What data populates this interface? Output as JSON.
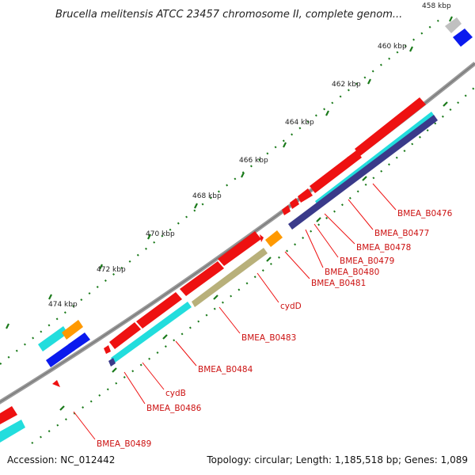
{
  "title": "Brucella melitensis ATCC 23457 chromosome II, complete genom...",
  "ticks": [
    "458 kbp",
    "460 kbp",
    "462 kbp",
    "464 kbp",
    "466 kbp",
    "468 kbp",
    "470 kbp",
    "472 kbp",
    "474 kbp"
  ],
  "gene_labels": [
    "BMEA_B0476",
    "BMEA_B0477",
    "BMEA_B0478",
    "BMEA_B0479",
    "BMEA_B0480",
    "BMEA_B0481",
    "cydD",
    "BMEA_B0483",
    "BMEA_B0484",
    "cydB",
    "BMEA_B0486",
    "BMEA_B0489"
  ],
  "footer": {
    "accession": "Accession: NC_012442",
    "summary": "Topology: circular; Length: 1,185,518 bp; Genes: 1,089"
  },
  "colors": {
    "cds": "#ee1111",
    "cyan": "#22dddd",
    "navy": "#3a3a8a",
    "orange": "#ff9900",
    "blue": "#0a1aee",
    "olive": "#b8b07a",
    "backbone": "#999999",
    "tick": "#1a7a1a",
    "label": "#cc1111"
  }
}
